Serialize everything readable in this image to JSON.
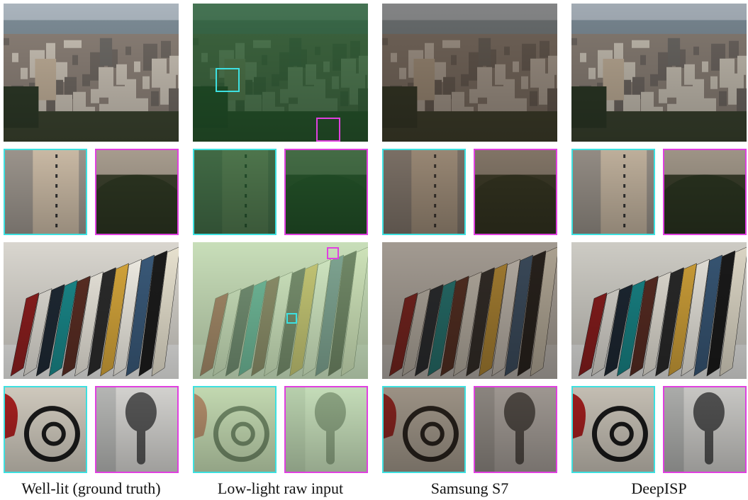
{
  "captions": [
    "Well-lit (ground truth)",
    "Low-light raw input",
    "Samsung S7",
    "DeepISP"
  ]
}
